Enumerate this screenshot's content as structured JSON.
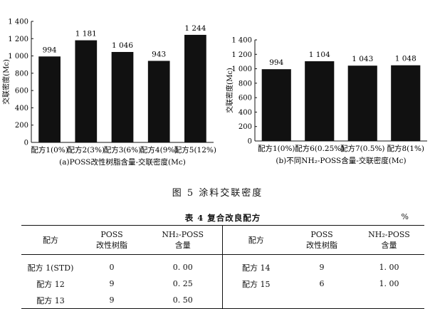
{
  "charts_meta": {
    "y_axis_label": "交联密度(Mc)"
  },
  "chart_data": [
    {
      "type": "bar",
      "caption": "(a)POSS改性树脂含量-交联密度(Mc)",
      "ylabel": "交联密度(Mc)",
      "xlabel": "",
      "ylim": [
        0,
        1400
      ],
      "yticks": [
        0,
        200,
        400,
        600,
        800,
        1000,
        1200,
        1400
      ],
      "ytick_labels": [
        "0",
        "200",
        "400",
        "600",
        "800",
        "1 000",
        "1 200",
        "1 400"
      ],
      "categories": [
        "配方1(0%)",
        "配方2(3%)",
        "配方3(6%)",
        "配方4(9%)",
        "配方5(12%)"
      ],
      "values": [
        994,
        1181,
        1046,
        943,
        1244
      ],
      "value_labels": [
        "994",
        "1 181",
        "1 046",
        "943",
        "1 244"
      ],
      "bar_color": "#111111",
      "grid": false
    },
    {
      "type": "bar",
      "caption": "(b)不同NH₂-POSS含量-交联密度(Mc)",
      "ylabel": "交联密度(Mc)",
      "xlabel": "",
      "ylim": [
        0,
        1400
      ],
      "yticks": [
        0,
        200,
        400,
        600,
        800,
        1000,
        1200,
        1400
      ],
      "ytick_labels": [
        "0",
        "200",
        "400",
        "600",
        "800",
        "1 000",
        "1 200",
        "1 400"
      ],
      "categories": [
        "配方1(0%)",
        "配方6(0.25%)",
        "配方7(0.5%)",
        "配方8(1%)"
      ],
      "values": [
        994,
        1104,
        1043,
        1048
      ],
      "value_labels": [
        "994",
        "1 104",
        "1 043",
        "1 048"
      ],
      "bar_color": "#111111",
      "grid": false
    }
  ],
  "figure": {
    "caption": "图 5   涂料交联密度"
  },
  "table": {
    "title": "表 4   复合改良配方",
    "unit": "%",
    "headers": {
      "formula": "配方",
      "poss_1": "POSS",
      "poss_2": "改性树脂",
      "nh2_1": "NH₂-POSS",
      "nh2_2": "含量"
    },
    "rows_left": [
      {
        "name": "配方 1(STD)",
        "poss": "0",
        "nh2": "0. 00"
      },
      {
        "name": "配方 12",
        "poss": "9",
        "nh2": "0. 25"
      },
      {
        "name": "配方 13",
        "poss": "9",
        "nh2": "0. 50"
      }
    ],
    "rows_right": [
      {
        "name": "配方 14",
        "poss": "9",
        "nh2": "1. 00"
      },
      {
        "name": "配方 15",
        "poss": "6",
        "nh2": "1. 00"
      },
      {
        "name": "",
        "poss": "",
        "nh2": ""
      }
    ]
  }
}
